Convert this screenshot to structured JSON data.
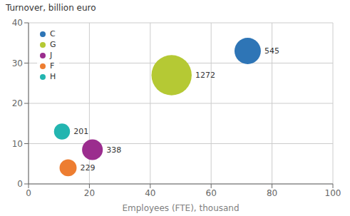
{
  "chart_data": {
    "type": "scatter",
    "xlabel": "Employees (FTE), thousand",
    "ylabel": "Turnover, billion euro",
    "series": [
      {
        "name": "C",
        "color": "#2e75b6",
        "x": [
          72
        ],
        "values": [
          33
        ],
        "size": [
          545
        ]
      },
      {
        "name": "G",
        "color": "#b5c934",
        "x": [
          47
        ],
        "values": [
          27
        ],
        "size": [
          1272
        ]
      },
      {
        "name": "J",
        "color": "#9b2d8e",
        "x": [
          21
        ],
        "values": [
          8.5
        ],
        "size": [
          338
        ]
      },
      {
        "name": "F",
        "color": "#ed7d31",
        "x": [
          13
        ],
        "values": [
          4
        ],
        "size": [
          229
        ]
      },
      {
        "name": "H",
        "color": "#23b5b0",
        "x": [
          11
        ],
        "values": [
          13
        ],
        "size": [
          201
        ]
      }
    ],
    "xlim": [
      0,
      100
    ],
    "ylim": [
      0,
      40
    ],
    "xticks": [
      0,
      20,
      40,
      60,
      80,
      100
    ],
    "yticks": [
      0,
      10,
      20,
      30,
      40
    ],
    "grid": true,
    "legend": "upper left",
    "data_labels": true
  }
}
